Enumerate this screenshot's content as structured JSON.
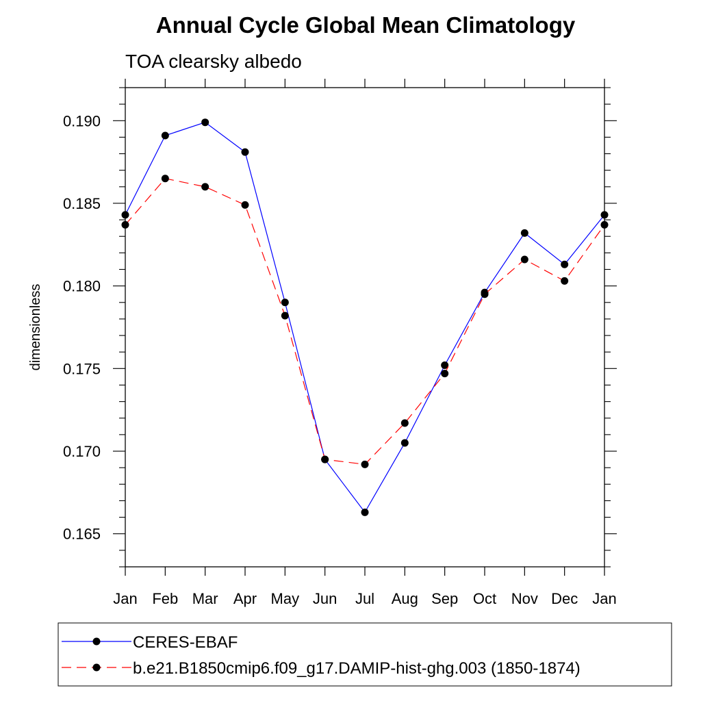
{
  "chart_data": {
    "type": "line",
    "title": "Annual Cycle Global Mean Climatology",
    "subtitle": "TOA clearsky albedo",
    "xlabel": "",
    "ylabel": "dimensionless",
    "categories": [
      "Jan",
      "Feb",
      "Mar",
      "Apr",
      "May",
      "Jun",
      "Jul",
      "Aug",
      "Sep",
      "Oct",
      "Nov",
      "Dec",
      "Jan"
    ],
    "ylim": [
      0.163,
      0.192
    ],
    "yticks": [
      "0.165",
      "0.170",
      "0.175",
      "0.180",
      "0.185",
      "0.190"
    ],
    "ytick_values": [
      0.165,
      0.17,
      0.175,
      0.18,
      0.185,
      0.19
    ],
    "grid": false,
    "legend_position": "bottom",
    "series": [
      {
        "name": "CERES-EBAF",
        "color": "#0000ff",
        "dash": "solid",
        "values": [
          0.1843,
          0.1891,
          0.1899,
          0.1881,
          0.179,
          0.1695,
          0.1663,
          0.1705,
          0.1752,
          0.1796,
          0.1832,
          0.1813,
          0.1843
        ]
      },
      {
        "name": "b.e21.B1850cmip6.f09_g17.DAMIP-hist-ghg.003 (1850-1874)",
        "color": "#ff0000",
        "dash": "dashed",
        "values": [
          0.1837,
          0.1865,
          0.186,
          0.1849,
          0.1782,
          0.1695,
          0.1692,
          0.1717,
          0.1747,
          0.1795,
          0.1816,
          0.1803,
          0.1837
        ]
      }
    ]
  }
}
